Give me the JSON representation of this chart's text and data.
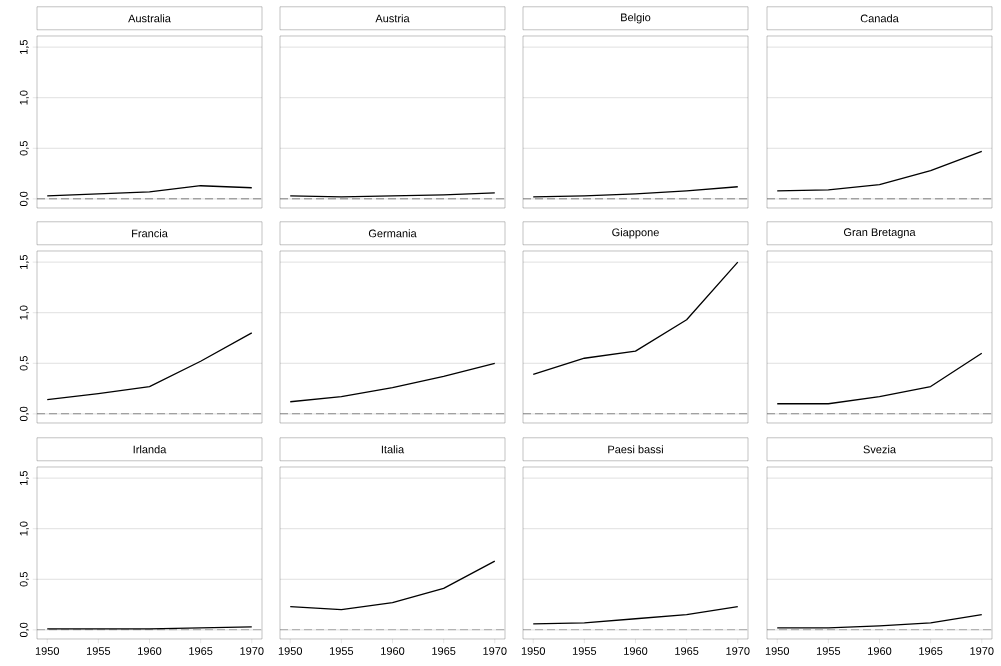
{
  "chart_data": [
    {
      "type": "line",
      "title": "Australia",
      "x": [
        1950,
        1955,
        1960,
        1965,
        1970
      ],
      "series": [
        {
          "color": "#000000",
          "values": [
            0.03,
            0.05,
            0.07,
            0.13,
            0.11
          ]
        }
      ],
      "xlim": [
        1949,
        1971
      ],
      "ylim": [
        -0.09,
        1.61
      ],
      "xticks": [
        1950,
        1955,
        1960,
        1965,
        1970
      ],
      "yticks": [
        {
          "value": 0,
          "label": "0,0"
        },
        {
          "value": 0.5,
          "label": "0,5"
        },
        {
          "value": 1,
          "label": "1,0"
        },
        {
          "value": 1.5,
          "label": "1,5"
        }
      ],
      "grid": "y",
      "ref_lines": [
        {
          "axis": "y",
          "value": 0,
          "line_style": "dashed",
          "color": "#555555"
        }
      ],
      "tick_labels": "y"
    },
    {
      "type": "line",
      "title": "Austria",
      "x": [
        1950,
        1955,
        1960,
        1965,
        1970
      ],
      "series": [
        {
          "color": "#000000",
          "values": [
            0.03,
            0.02,
            0.03,
            0.04,
            0.06
          ]
        }
      ],
      "xlim": [
        1949,
        1971
      ],
      "ylim": [
        -0.09,
        1.61
      ],
      "xticks": [
        1950,
        1955,
        1960,
        1965,
        1970
      ],
      "yticks": [
        {
          "value": 0,
          "label": null
        },
        {
          "value": 0.5,
          "label": null
        },
        {
          "value": 1,
          "label": null
        },
        {
          "value": 1.5,
          "label": null
        }
      ],
      "grid": "y",
      "ref_lines": [
        {
          "axis": "y",
          "value": 0,
          "line_style": "dashed",
          "color": "#555555"
        }
      ],
      "tick_labels": false
    },
    {
      "type": "line",
      "title": "Belgio",
      "x": [
        1950,
        1955,
        1960,
        1965,
        1970
      ],
      "series": [
        {
          "color": "#000000",
          "values": [
            0.02,
            0.03,
            0.05,
            0.08,
            0.12
          ]
        }
      ],
      "xlim": [
        1949,
        1971
      ],
      "ylim": [
        -0.09,
        1.61
      ],
      "xticks": [
        1950,
        1955,
        1960,
        1965,
        1970
      ],
      "yticks": [
        {
          "value": 0,
          "label": null
        },
        {
          "value": 0.5,
          "label": null
        },
        {
          "value": 1,
          "label": null
        },
        {
          "value": 1.5,
          "label": null
        }
      ],
      "grid": "y",
      "ref_lines": [
        {
          "axis": "y",
          "value": 0,
          "line_style": "dashed",
          "color": "#555555"
        }
      ],
      "tick_labels": false
    },
    {
      "type": "line",
      "title": "Canada",
      "x": [
        1950,
        1955,
        1960,
        1965,
        1970
      ],
      "series": [
        {
          "color": "#000000",
          "values": [
            0.08,
            0.09,
            0.14,
            0.28,
            0.47
          ]
        }
      ],
      "xlim": [
        1949,
        1971
      ],
      "ylim": [
        -0.09,
        1.61
      ],
      "xticks": [
        1950,
        1955,
        1960,
        1965,
        1970
      ],
      "yticks": [
        {
          "value": 0,
          "label": null
        },
        {
          "value": 0.5,
          "label": null
        },
        {
          "value": 1,
          "label": null
        },
        {
          "value": 1.5,
          "label": null
        }
      ],
      "grid": "y",
      "ref_lines": [
        {
          "axis": "y",
          "value": 0,
          "line_style": "dashed",
          "color": "#555555"
        }
      ],
      "tick_labels": false
    },
    {
      "type": "line",
      "title": "Francia",
      "x": [
        1950,
        1955,
        1960,
        1965,
        1970
      ],
      "series": [
        {
          "color": "#000000",
          "values": [
            0.14,
            0.2,
            0.27,
            0.52,
            0.8
          ]
        }
      ],
      "xlim": [
        1949,
        1971
      ],
      "ylim": [
        -0.09,
        1.61
      ],
      "xticks": [
        1950,
        1955,
        1960,
        1965,
        1970
      ],
      "yticks": [
        {
          "value": 0,
          "label": "0,0"
        },
        {
          "value": 0.5,
          "label": "0,5"
        },
        {
          "value": 1,
          "label": "1,0"
        },
        {
          "value": 1.5,
          "label": "1,5"
        }
      ],
      "grid": "y",
      "ref_lines": [
        {
          "axis": "y",
          "value": 0,
          "line_style": "dashed",
          "color": "#555555"
        }
      ],
      "tick_labels": "y"
    },
    {
      "type": "line",
      "title": "Germania",
      "x": [
        1950,
        1955,
        1960,
        1965,
        1970
      ],
      "series": [
        {
          "color": "#000000",
          "values": [
            0.12,
            0.17,
            0.26,
            0.37,
            0.5
          ]
        }
      ],
      "xlim": [
        1949,
        1971
      ],
      "ylim": [
        -0.09,
        1.61
      ],
      "xticks": [
        1950,
        1955,
        1960,
        1965,
        1970
      ],
      "yticks": [
        {
          "value": 0,
          "label": null
        },
        {
          "value": 0.5,
          "label": null
        },
        {
          "value": 1,
          "label": null
        },
        {
          "value": 1.5,
          "label": null
        }
      ],
      "grid": "y",
      "ref_lines": [
        {
          "axis": "y",
          "value": 0,
          "line_style": "dashed",
          "color": "#555555"
        }
      ],
      "tick_labels": false
    },
    {
      "type": "line",
      "title": "Giappone",
      "x": [
        1950,
        1955,
        1960,
        1965,
        1970
      ],
      "series": [
        {
          "color": "#000000",
          "values": [
            0.39,
            0.55,
            0.62,
            0.93,
            1.5
          ]
        }
      ],
      "xlim": [
        1949,
        1971
      ],
      "ylim": [
        -0.09,
        1.61
      ],
      "xticks": [
        1950,
        1955,
        1960,
        1965,
        1970
      ],
      "yticks": [
        {
          "value": 0,
          "label": null
        },
        {
          "value": 0.5,
          "label": null
        },
        {
          "value": 1,
          "label": null
        },
        {
          "value": 1.5,
          "label": null
        }
      ],
      "grid": "y",
      "ref_lines": [
        {
          "axis": "y",
          "value": 0,
          "line_style": "dashed",
          "color": "#555555"
        }
      ],
      "tick_labels": false
    },
    {
      "type": "line",
      "title": "Gran Bretagna",
      "x": [
        1950,
        1955,
        1960,
        1965,
        1970
      ],
      "series": [
        {
          "color": "#000000",
          "values": [
            0.1,
            0.1,
            0.17,
            0.27,
            0.6
          ]
        }
      ],
      "xlim": [
        1949,
        1971
      ],
      "ylim": [
        -0.09,
        1.61
      ],
      "xticks": [
        1950,
        1955,
        1960,
        1965,
        1970
      ],
      "yticks": [
        {
          "value": 0,
          "label": null
        },
        {
          "value": 0.5,
          "label": null
        },
        {
          "value": 1,
          "label": null
        },
        {
          "value": 1.5,
          "label": null
        }
      ],
      "grid": "y",
      "ref_lines": [
        {
          "axis": "y",
          "value": 0,
          "line_style": "dashed",
          "color": "#555555"
        }
      ],
      "tick_labels": false
    },
    {
      "type": "line",
      "title": "Irlanda",
      "x": [
        1950,
        1955,
        1960,
        1965,
        1970
      ],
      "series": [
        {
          "color": "#000000",
          "values": [
            0.01,
            0.01,
            0.01,
            0.02,
            0.03
          ]
        }
      ],
      "xlim": [
        1949,
        1971
      ],
      "ylim": [
        -0.09,
        1.61
      ],
      "xticks": [
        1950,
        1955,
        1960,
        1965,
        1970
      ],
      "yticks": [
        {
          "value": 0,
          "label": "0,0"
        },
        {
          "value": 0.5,
          "label": "0,5"
        },
        {
          "value": 1,
          "label": "1,0"
        },
        {
          "value": 1.5,
          "label": "1,5"
        }
      ],
      "grid": "y",
      "ref_lines": [
        {
          "axis": "y",
          "value": 0,
          "line_style": "dashed",
          "color": "#555555"
        }
      ]
    },
    {
      "type": "line",
      "title": "Italia",
      "x": [
        1950,
        1955,
        1960,
        1965,
        1970
      ],
      "series": [
        {
          "color": "#000000",
          "values": [
            0.23,
            0.2,
            0.27,
            0.41,
            0.68
          ]
        }
      ],
      "xlim": [
        1949,
        1971
      ],
      "ylim": [
        -0.09,
        1.61
      ],
      "xticks": [
        1950,
        1955,
        1960,
        1965,
        1970
      ],
      "yticks": [
        {
          "value": 0,
          "label": null
        },
        {
          "value": 0.5,
          "label": null
        },
        {
          "value": 1,
          "label": null
        },
        {
          "value": 1.5,
          "label": null
        }
      ],
      "grid": "y",
      "ref_lines": [
        {
          "axis": "y",
          "value": 0,
          "line_style": "dashed",
          "color": "#555555"
        }
      ],
      "tick_labels": "x"
    },
    {
      "type": "line",
      "title": "Paesi bassi",
      "x": [
        1950,
        1955,
        1960,
        1965,
        1970
      ],
      "series": [
        {
          "color": "#000000",
          "values": [
            0.06,
            0.07,
            0.11,
            0.15,
            0.23
          ]
        }
      ],
      "xlim": [
        1949,
        1971
      ],
      "ylim": [
        -0.09,
        1.61
      ],
      "xticks": [
        1950,
        1955,
        1960,
        1965,
        1970
      ],
      "yticks": [
        {
          "value": 0,
          "label": null
        },
        {
          "value": 0.5,
          "label": null
        },
        {
          "value": 1,
          "label": null
        },
        {
          "value": 1.5,
          "label": null
        }
      ],
      "grid": "y",
      "ref_lines": [
        {
          "axis": "y",
          "value": 0,
          "line_style": "dashed",
          "color": "#555555"
        }
      ],
      "tick_labels": "x"
    },
    {
      "type": "line",
      "title": "Svezia",
      "x": [
        1950,
        1955,
        1960,
        1965,
        1970
      ],
      "series": [
        {
          "color": "#000000",
          "values": [
            0.02,
            0.02,
            0.04,
            0.07,
            0.15
          ]
        }
      ],
      "xlim": [
        1949,
        1971
      ],
      "ylim": [
        -0.09,
        1.61
      ],
      "xticks": [
        1950,
        1955,
        1960,
        1965,
        1970
      ],
      "yticks": [
        {
          "value": 0,
          "label": null
        },
        {
          "value": 0.5,
          "label": null
        },
        {
          "value": 1,
          "label": null
        },
        {
          "value": 1.5,
          "label": null
        }
      ],
      "grid": "y",
      "ref_lines": [
        {
          "axis": "y",
          "value": 0,
          "line_style": "dashed",
          "color": "#555555"
        }
      ],
      "tick_labels": "x"
    }
  ]
}
